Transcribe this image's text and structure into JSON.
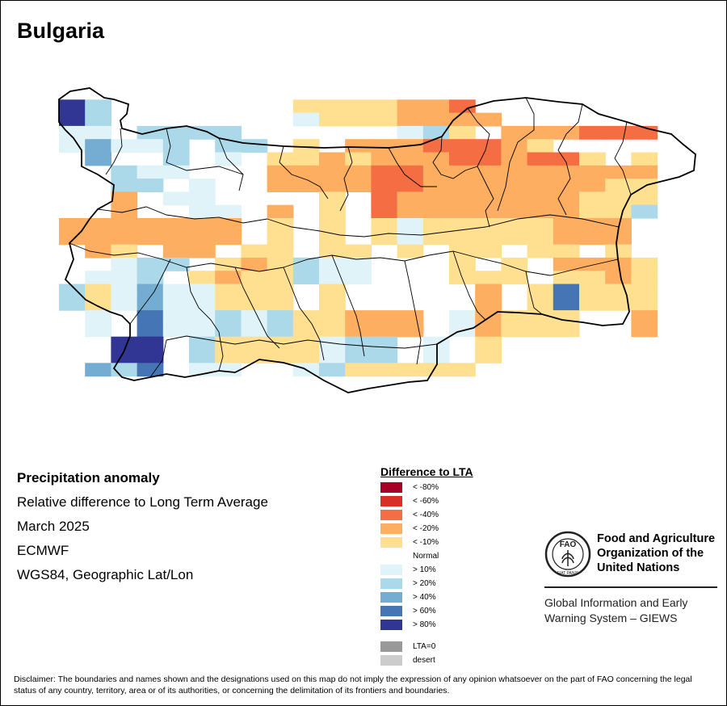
{
  "map": {
    "title": "Bulgaria"
  },
  "info": {
    "title": "Precipitation anomaly",
    "subtitle": "Relative difference to Long Term Average",
    "date": "March 2025",
    "model": "ECMWF",
    "projection": "WGS84, Geographic Lat/Lon"
  },
  "legend": {
    "title": "Difference to LTA",
    "items": [
      {
        "label": "< -80%",
        "color": "#a50026"
      },
      {
        "label": "< -60%",
        "color": "#d73027"
      },
      {
        "label": "< -40%",
        "color": "#f46d43"
      },
      {
        "label": "< -20%",
        "color": "#fdae61"
      },
      {
        "label": "< -10%",
        "color": "#fee090"
      },
      {
        "label": "Normal",
        "color": "#ffffff"
      },
      {
        "label": "> 10%",
        "color": "#e0f3f8"
      },
      {
        "label": "> 20%",
        "color": "#abd9e9"
      },
      {
        "label": "> 40%",
        "color": "#74add1"
      },
      {
        "label": "> 60%",
        "color": "#4575b4"
      },
      {
        "label": "> 80%",
        "color": "#313695"
      },
      {
        "label": "LTA=0",
        "color": "#999999"
      },
      {
        "label": "desert",
        "color": "#cccccc"
      }
    ]
  },
  "fao": {
    "name_line1": "Food and Agriculture",
    "name_line2": "Organization of the",
    "name_line3": "United Nations",
    "logo_text": "FAO",
    "logo_motto": "FIAT PANIS",
    "giews_line1": "Global Information and Early",
    "giews_line2": "Warning System – GIEWS"
  },
  "disclaimer": "Disclaimer: The boundaries and names shown and the designations used on this map do not imply the expression of any opinion whatsoever on the part of FAO concerning the legal status of any country, territory, area or of its authorities, or concerning the delimitation of its frontiers and boundaries.",
  "grid": {
    "colors": {
      "D3": "#f46d43",
      "D2": "#fdae61",
      "D1": "#fee090",
      "W1": "#e0f3f8",
      "W2": "#abd9e9",
      "W3": "#74add1",
      "W4": "#4575b4",
      "W5": "#313695"
    },
    "rows": [
      "..........................",
      "W5W2..............D1D1D1D1D2D2D3..",
      "W5W2..............W1D1D1D1D2D2D2D2..",
      "W1W1..W2W2W2W2............W1W2D1..D2D2D2D3D3D3",
      "W1W3W1W1W2..W2W2..D1..D2D2D2D3D3D3D2D1......",
      "..W3....W2..W1..D1D1D2D1D2D2D2D3D3D2D3D3D1..D1",
      "....W2W1W1......D2D2D2D2D3D3D2D2D2D2D2D2D2D2D2",
      "....W2W2..W1....D2D2D2D2D3D3D2D2D2D2D2D2D2D1D1",
      "....D2..W1W1........D1..D3D2D2D2D2D2D2D2D1D1D1",
      "....D2....W1W1..D2..D1..D3D2D2D2D2D2D2D2D1D1W2",
      "D2D2D2D2D2D2D2..D1..D1..D1W1D1D1D1D1D1D2D2D2..",
      "D2D2D2D2D2D2D2..D1..D1..D1W1D1D1D1D1D1D2D2D2..",
      "..D2D1..D2D2..D1D1..D1D1..D1..D1D1..D1D1..D1",
      "....W1W2W2..D1D2D1W2W1W1......D1..D1..D2D2D2D1",
      "..W1W1W2..D1D2D1D1W2W1W1......D1D1D1..D1D1D2D1",
      "W2D1W1W3W1W1D1D1D1..D1..........D2..D1W4D1D1D1",
      "W2D1W1W3W1W1D1D1D1..D1..........D2..D1W4D1D1D1",
      "..W1..W4W1W1W2W1W2D1D1D2D2D2..W1D2D1D1D1....D2",
      "..W1..W4W1W1W2W1W2D1D1D2D2D2..W1D2D1D1D1....D2",
      "....W5W5..W2D1D1D1D1W1W2W2..W1..D1..........",
      "....W5W5..W2D1D1D1D1W1W2W2..W1..D1..........",
      "..W3W2W4..W1W1....W1W2D1D1D1D1D1............"
    ]
  }
}
